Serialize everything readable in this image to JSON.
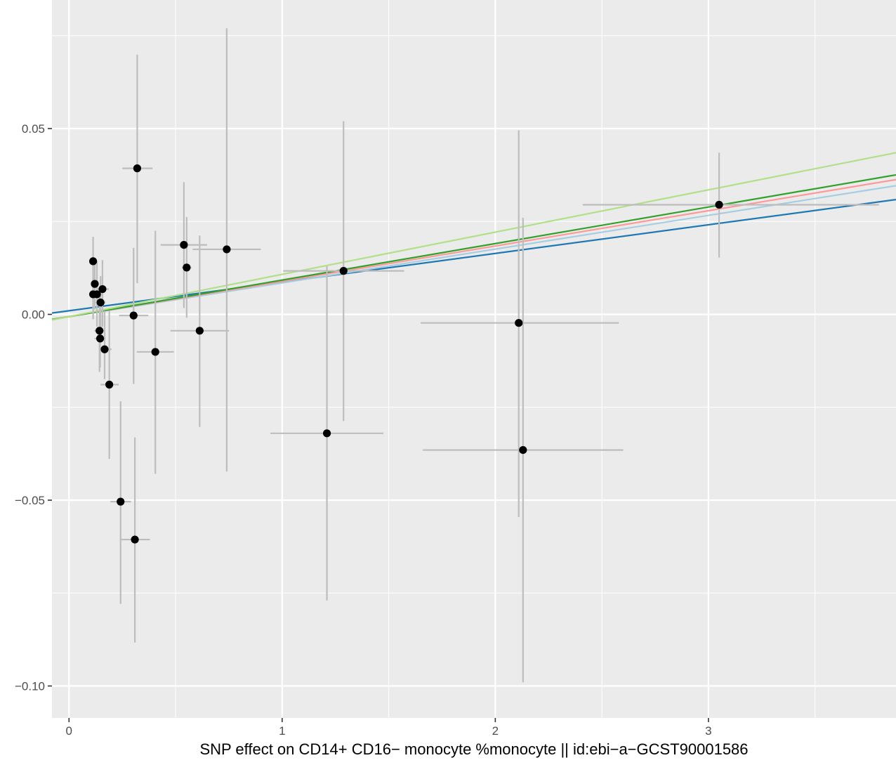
{
  "chart_data": {
    "type": "scatter",
    "title": "",
    "xlabel": "SNP effect on CD14+ CD16− monocyte %monocyte || id:ebi−a−GCST90001586",
    "ylabel": "",
    "xlim": [
      -0.08,
      3.88
    ],
    "ylim": [
      -0.1086,
      0.0846
    ],
    "x_ticks": [
      0,
      1,
      2,
      3
    ],
    "x_tick_labels": [
      "0",
      "1",
      "2",
      "3"
    ],
    "y_ticks": [
      -0.1,
      -0.05,
      0.0,
      0.05
    ],
    "y_tick_labels": [
      "−0.10",
      "−0.05",
      "0.00",
      "0.05"
    ],
    "grid": true,
    "background": "#ebebeb",
    "colors": {
      "point": "#000000",
      "errorbar": "#bdbdbd",
      "grid_major": "#ffffff"
    },
    "points": [
      {
        "x": 0.113,
        "y": 0.0143,
        "xmin": 0.105,
        "xmax": 0.121,
        "ymin": -0.0013,
        "ymax": 0.0209
      },
      {
        "x": 0.113,
        "y": 0.0054,
        "xmin": 0.104,
        "xmax": 0.122,
        "ymin": -0.0013,
        "ymax": 0.0123
      },
      {
        "x": 0.121,
        "y": 0.0082,
        "xmin": 0.112,
        "xmax": 0.13,
        "ymin": 0.0013,
        "ymax": 0.0143
      },
      {
        "x": 0.131,
        "y": 0.0054,
        "xmin": 0.11,
        "xmax": 0.152,
        "ymin": -0.0033,
        "ymax": 0.0143
      },
      {
        "x": 0.148,
        "y": 0.0032,
        "xmin": 0.125,
        "xmax": 0.172,
        "ymin": -0.0038,
        "ymax": 0.0103
      },
      {
        "x": 0.157,
        "y": 0.0068,
        "xmin": 0.128,
        "xmax": 0.187,
        "ymin": -0.0033,
        "ymax": 0.0146
      },
      {
        "x": 0.143,
        "y": -0.0044,
        "xmin": 0.118,
        "xmax": 0.168,
        "ymin": -0.0155,
        "ymax": 0.0054
      },
      {
        "x": 0.146,
        "y": -0.0065,
        "xmin": 0.12,
        "xmax": 0.172,
        "ymin": -0.0143,
        "ymax": 0.0022
      },
      {
        "x": 0.167,
        "y": -0.0094,
        "xmin": 0.145,
        "xmax": 0.2,
        "ymin": -0.0174,
        "ymax": 0.0009
      },
      {
        "x": 0.189,
        "y": -0.0189,
        "xmin": 0.148,
        "xmax": 0.233,
        "ymin": -0.0389,
        "ymax": 0.0009
      },
      {
        "x": 0.242,
        "y": -0.0504,
        "xmin": 0.194,
        "xmax": 0.291,
        "ymin": -0.0779,
        "ymax": -0.0234
      },
      {
        "x": 0.309,
        "y": -0.0606,
        "xmin": 0.242,
        "xmax": 0.38,
        "ymin": -0.0883,
        "ymax": -0.0331
      },
      {
        "x": 0.303,
        "y": -0.0003,
        "xmin": 0.235,
        "xmax": 0.372,
        "ymin": -0.0187,
        "ymax": 0.0179
      },
      {
        "x": 0.32,
        "y": 0.0393,
        "xmin": 0.25,
        "xmax": 0.392,
        "ymin": 0.0084,
        "ymax": 0.0699
      },
      {
        "x": 0.405,
        "y": -0.0101,
        "xmin": 0.318,
        "xmax": 0.492,
        "ymin": -0.0429,
        "ymax": 0.0225
      },
      {
        "x": 0.539,
        "y": 0.0187,
        "xmin": 0.43,
        "xmax": 0.648,
        "ymin": 0.0017,
        "ymax": 0.0356
      },
      {
        "x": 0.552,
        "y": 0.0126,
        "xmin": 0.53,
        "xmax": 0.574,
        "ymin": -0.0009,
        "ymax": 0.0262
      },
      {
        "x": 0.613,
        "y": -0.0044,
        "xmin": 0.476,
        "xmax": 0.751,
        "ymin": -0.0303,
        "ymax": 0.0212
      },
      {
        "x": 0.74,
        "y": 0.0175,
        "xmin": 0.58,
        "xmax": 0.9,
        "ymin": -0.0423,
        "ymax": 0.077
      },
      {
        "x": 1.288,
        "y": 0.0117,
        "xmin": 1.005,
        "xmax": 1.572,
        "ymin": -0.0287,
        "ymax": 0.052
      },
      {
        "x": 1.21,
        "y": -0.032,
        "xmin": 0.945,
        "xmax": 1.475,
        "ymin": -0.077,
        "ymax": 0.013
      },
      {
        "x": 2.11,
        "y": -0.0023,
        "xmin": 1.65,
        "xmax": 2.58,
        "ymin": -0.0545,
        "ymax": 0.0495
      },
      {
        "x": 2.13,
        "y": -0.0365,
        "xmin": 1.66,
        "xmax": 2.6,
        "ymin": -0.099,
        "ymax": 0.026
      },
      {
        "x": 3.05,
        "y": 0.0295,
        "xmin": 2.41,
        "xmax": 3.8,
        "ymin": 0.0153,
        "ymax": 0.0435
      }
    ],
    "lines": [
      {
        "intercept": 0.00098,
        "slope": 0.00771,
        "color": "#1f78b4"
      },
      {
        "intercept": -0.0006,
        "slope": 0.00908,
        "color": "#a6cee3"
      },
      {
        "intercept": -0.0006,
        "slope": 0.0095,
        "color": "#fb9a99"
      },
      {
        "intercept": -0.0006,
        "slope": 0.00983,
        "color": "#33a02c"
      },
      {
        "intercept": -0.0006,
        "slope": 0.01137,
        "color": "#b2df8a"
      }
    ]
  }
}
